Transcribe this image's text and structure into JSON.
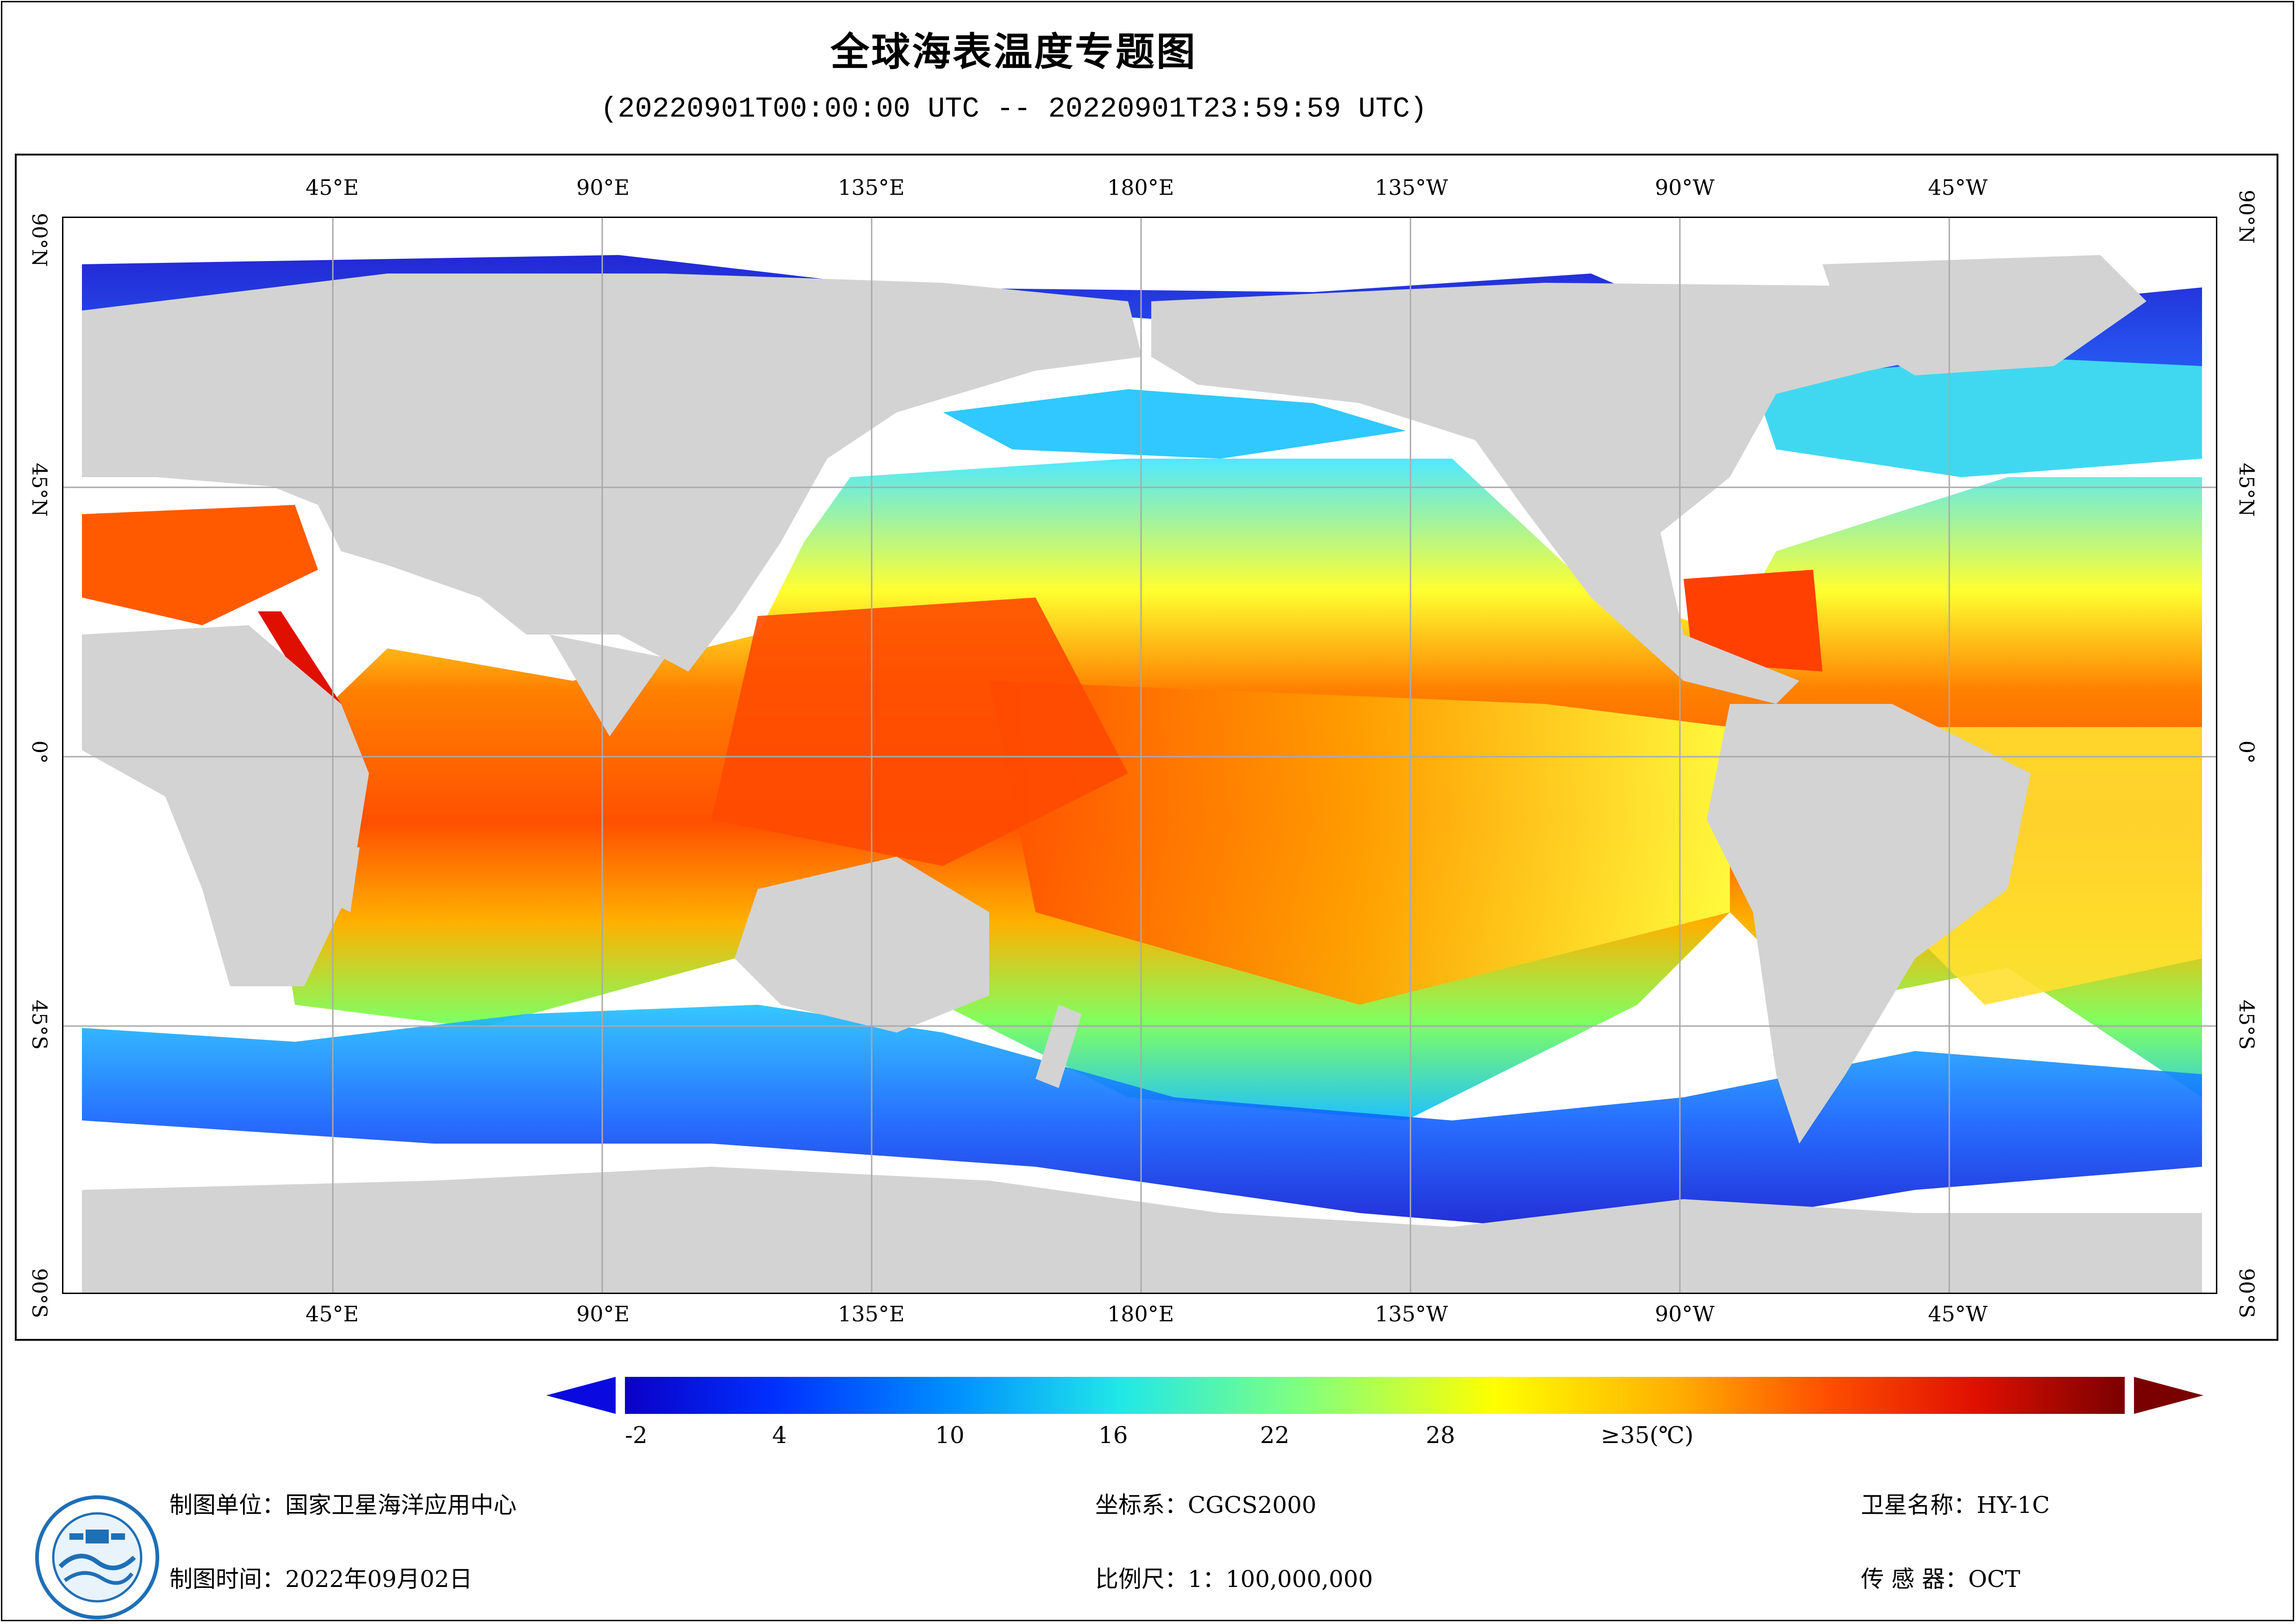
{
  "title": "全球海表温度专题图",
  "subtitle": "(20220901T00:00:00 UTC -- 20220901T23:59:59 UTC)",
  "map": {
    "lon_labels": [
      "45°E",
      "90°E",
      "135°E",
      "180°E",
      "135°W",
      "90°W",
      "45°W"
    ],
    "lat_labels": [
      "90°N",
      "45°N",
      "0°",
      "45°S",
      "90°S"
    ],
    "colors": {
      "land": "#d3d3d3",
      "no_data": "#ffffff",
      "grid": "#aaaaaa"
    }
  },
  "colorbar": {
    "ticks": [
      "-2",
      "4",
      "10",
      "16",
      "22",
      "28",
      "≥35(℃)"
    ],
    "min": -2,
    "max": 35,
    "unit": "℃",
    "colors": [
      "#0b00c8",
      "#0030ff",
      "#0090ff",
      "#20e8e8",
      "#80ff80",
      "#ffff00",
      "#ffb000",
      "#ff5000",
      "#e01000",
      "#7a0000"
    ]
  },
  "footer": {
    "unit_label": "制图单位：国家卫星海洋应用中心",
    "time_label": "制图时间：2022年09月02日",
    "coord_label": "坐标系：CGCS2000",
    "scale_label": "比例尺：1：100,000,000",
    "satellite_label": "卫星名称：HY-1C",
    "sensor_label": "传  感  器：OCT"
  }
}
